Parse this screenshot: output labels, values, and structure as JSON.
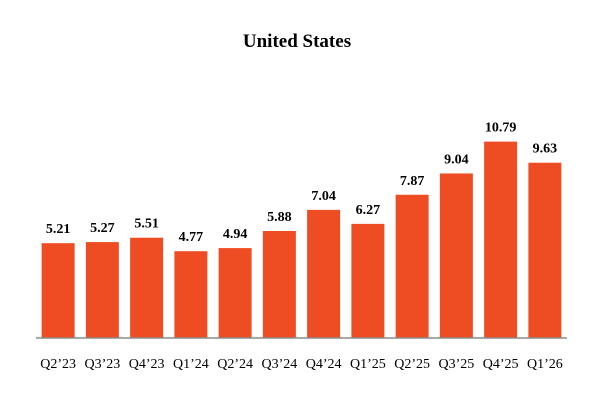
{
  "chart_data": {
    "type": "bar",
    "title": "United States",
    "categories": [
      "Q2’23",
      "Q3’23",
      "Q4’23",
      "Q1’24",
      "Q2’24",
      "Q3’24",
      "Q4’24",
      "Q1’25",
      "Q2’25",
      "Q3’25",
      "Q4’25",
      "Q1’26"
    ],
    "values": [
      5.21,
      5.27,
      5.51,
      4.77,
      4.94,
      5.88,
      7.04,
      6.27,
      7.87,
      9.04,
      10.79,
      9.63
    ],
    "value_labels": [
      "5.21",
      "5.27",
      "5.51",
      "4.77",
      "4.94",
      "5.88",
      "7.04",
      "6.27",
      "7.87",
      "9.04",
      "10.79",
      "9.63"
    ],
    "xlabel": "",
    "ylabel": "",
    "ylim": [
      0,
      11.5
    ],
    "grid": false,
    "legend": "none",
    "bar_color": "#EE4D23",
    "axis_color": "#8C8C8C"
  }
}
